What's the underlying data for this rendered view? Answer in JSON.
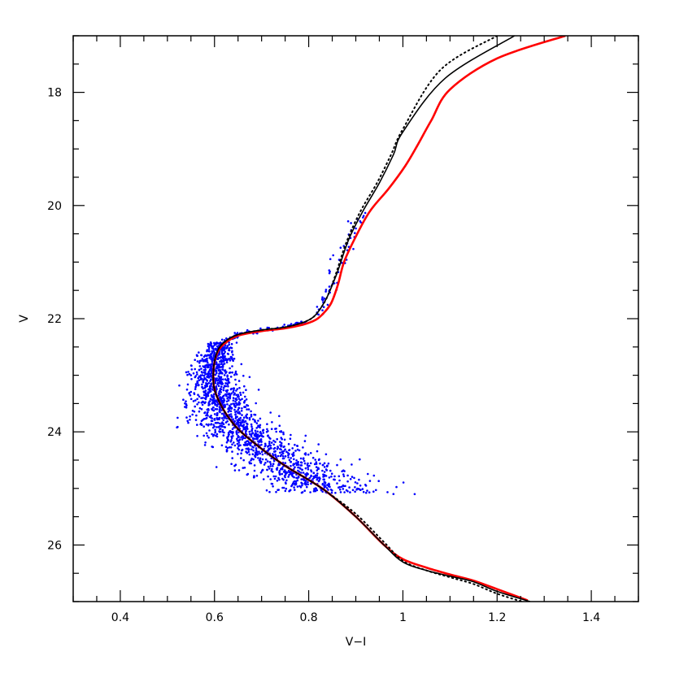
{
  "chart_data": {
    "type": "scatter",
    "title": "",
    "xlabel": "V−I",
    "ylabel": "V",
    "xlim": [
      0.3,
      1.5
    ],
    "ylim": [
      27.0,
      17.0
    ],
    "y_inverted": true,
    "grid": false,
    "legend": "none",
    "x_ticks": [
      "0.4",
      "0.6",
      "0.8",
      "1",
      "1.2",
      "1.4"
    ],
    "x_tick_values": [
      0.4,
      0.6,
      0.8,
      1.0,
      1.2,
      1.4
    ],
    "y_ticks": [
      "18",
      "20",
      "22",
      "24",
      "26"
    ],
    "y_tick_values": [
      18,
      20,
      22,
      24,
      26
    ],
    "colors": {
      "points": "#0000ff",
      "isochrone_red": "#ff0000",
      "isochrone_black": "#000000"
    },
    "series": [
      {
        "style": "solid",
        "color": "#000000",
        "x": [
          1.237,
          1.09,
          1.0,
          0.98,
          0.95,
          0.915,
          0.885,
          0.86,
          0.84,
          0.825,
          0.81,
          0.79,
          0.75,
          0.7,
          0.65,
          0.62,
          0.605,
          0.598,
          0.6,
          0.62,
          0.65,
          0.7,
          0.75,
          0.8,
          0.84,
          0.9,
          0.96,
          1.0,
          1.05,
          1.1,
          1.15,
          1.2,
          1.27
        ],
        "y": [
          17.0,
          17.75,
          18.7,
          19.1,
          19.6,
          20.1,
          20.6,
          21.2,
          21.6,
          21.82,
          21.97,
          22.06,
          22.15,
          22.2,
          22.28,
          22.42,
          22.6,
          22.9,
          23.25,
          23.62,
          23.95,
          24.3,
          24.6,
          24.85,
          25.07,
          25.5,
          26.0,
          26.3,
          26.45,
          26.55,
          26.65,
          26.82,
          27.0
        ]
      },
      {
        "style": "dotted",
        "color": "#000000",
        "x": [
          1.2,
          1.08,
          1.0,
          0.975,
          0.945,
          0.91,
          0.88,
          0.858,
          0.84,
          0.825,
          0.81,
          0.79,
          0.75,
          0.7,
          0.65,
          0.62,
          0.605,
          0.598,
          0.6,
          0.62,
          0.65,
          0.7,
          0.75,
          0.8,
          0.84,
          0.9,
          0.96,
          1.0,
          1.05,
          1.1,
          1.15,
          1.2,
          1.26
        ],
        "y": [
          17.0,
          17.6,
          18.65,
          19.1,
          19.6,
          20.1,
          20.65,
          21.2,
          21.6,
          21.82,
          21.97,
          22.06,
          22.15,
          22.2,
          22.28,
          22.42,
          22.6,
          22.9,
          23.25,
          23.62,
          23.95,
          24.3,
          24.6,
          24.85,
          25.07,
          25.45,
          25.95,
          26.28,
          26.45,
          26.57,
          26.69,
          26.86,
          27.02
        ]
      },
      {
        "style": "solid",
        "color": "#ff0000",
        "x": [
          1.345,
          1.2,
          1.1,
          1.06,
          1.03,
          1.005,
          0.97,
          0.93,
          0.9,
          0.875,
          0.862,
          0.848,
          0.832,
          0.815,
          0.79,
          0.75,
          0.7,
          0.65,
          0.62,
          0.605,
          0.598,
          0.6,
          0.62,
          0.65,
          0.7,
          0.75,
          0.8,
          0.84,
          0.9,
          0.96,
          1.0,
          1.05,
          1.1,
          1.15,
          1.2,
          1.265
        ],
        "y": [
          17.0,
          17.4,
          17.95,
          18.5,
          18.95,
          19.3,
          19.7,
          20.1,
          20.55,
          21.0,
          21.4,
          21.72,
          21.9,
          22.02,
          22.1,
          22.17,
          22.22,
          22.3,
          22.45,
          22.62,
          22.9,
          23.25,
          23.62,
          23.95,
          24.3,
          24.6,
          24.85,
          25.07,
          25.5,
          26.0,
          26.25,
          26.4,
          26.52,
          26.63,
          26.78,
          26.98
        ]
      }
    ]
  }
}
